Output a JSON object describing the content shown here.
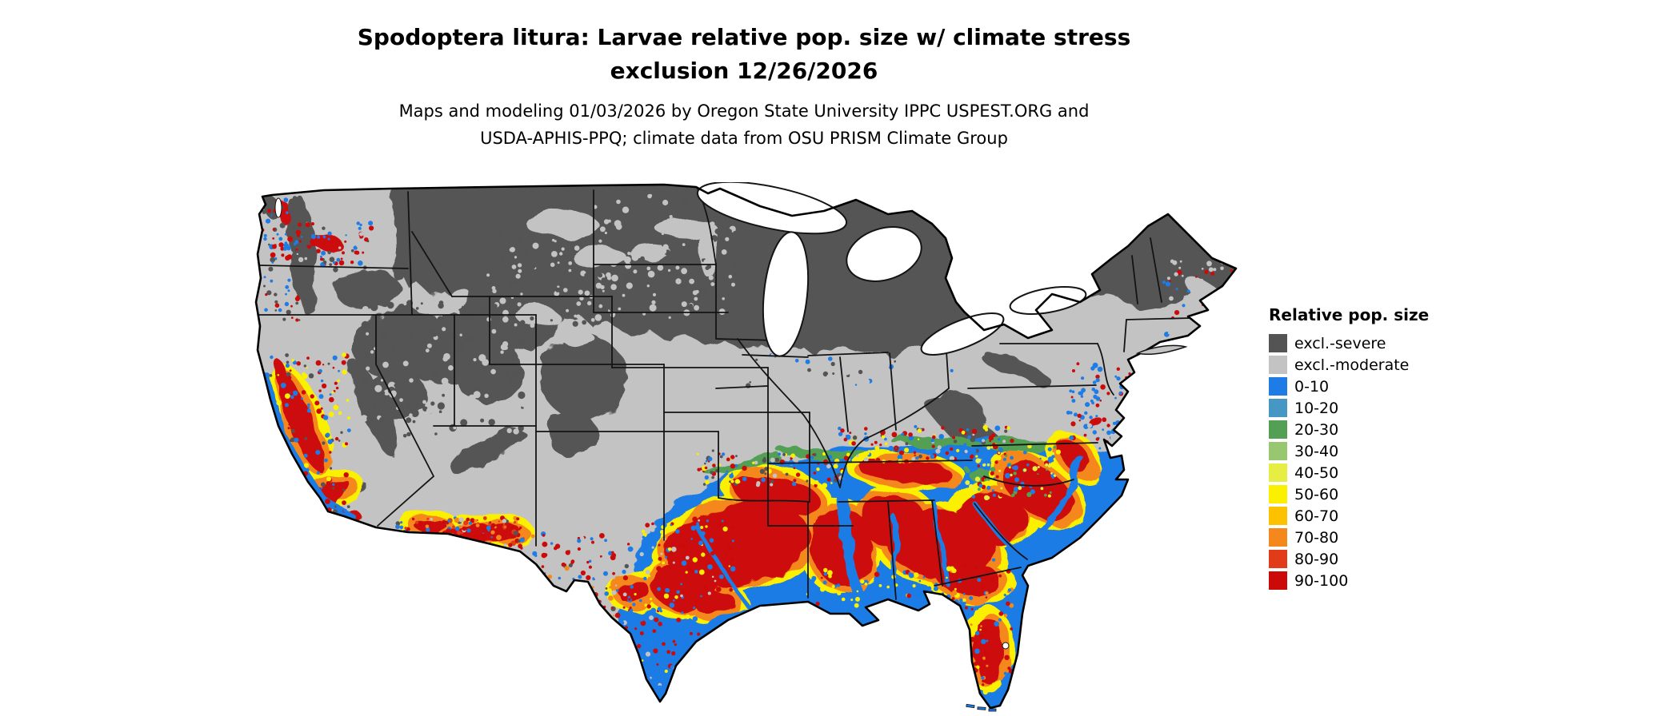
{
  "title": {
    "line1": "Spodoptera litura: Larvae relative pop. size w/ climate stress",
    "line2": "exclusion 12/26/2026"
  },
  "subtitle": {
    "line1": "Maps and modeling 01/03/2026 by Oregon State University IPPC USPEST.ORG and",
    "line2": "USDA-APHIS-PPQ; climate data from OSU PRISM Climate Group"
  },
  "legend": {
    "title": "Relative pop. size",
    "items": [
      {
        "label": "excl.-severe",
        "color": "#545454"
      },
      {
        "label": "excl.-moderate",
        "color": "#c3c3c3"
      },
      {
        "label": "0-10",
        "color": "#1e7ce6"
      },
      {
        "label": "10-20",
        "color": "#4697c4"
      },
      {
        "label": "20-30",
        "color": "#53a055"
      },
      {
        "label": "30-40",
        "color": "#97c76f"
      },
      {
        "label": "40-50",
        "color": "#e6ed43"
      },
      {
        "label": "50-60",
        "color": "#fbf000"
      },
      {
        "label": "60-70",
        "color": "#fcc200"
      },
      {
        "label": "70-80",
        "color": "#f5881d"
      },
      {
        "label": "80-90",
        "color": "#e23b19"
      },
      {
        "label": "90-100",
        "color": "#cd0a0a"
      }
    ]
  },
  "chart_data": {
    "type": "heatmap",
    "map_region": "Contiguous United States",
    "title": "Spodoptera litura: Larvae relative pop. size w/ climate stress exclusion 12/26/2026",
    "legend_title": "Relative pop. size",
    "classes": [
      "excl.-severe",
      "excl.-moderate",
      "0-10",
      "10-20",
      "20-30",
      "30-40",
      "40-50",
      "50-60",
      "60-70",
      "70-80",
      "80-90",
      "90-100"
    ],
    "class_colors": {
      "excl.-severe": "#545454",
      "excl.-moderate": "#c3c3c3",
      "0-10": "#1e7ce6",
      "10-20": "#4697c4",
      "20-30": "#53a055",
      "30-40": "#97c76f",
      "40-50": "#e6ed43",
      "50-60": "#fbf000",
      "60-70": "#fcc200",
      "70-80": "#f5881d",
      "80-90": "#e23b19",
      "90-100": "#cd0a0a"
    },
    "distribution_summary": {
      "excl_severe": "Northern tier dark gray: Cascades and Olympics, northern Rockies, Montana, Dakotas, Minnesota, Wisconsin, Michigan, Adirondacks, northern New England, high Great Basin and Colorado Rockies, Sierra Nevada, Appalachian highlands",
      "excl_moderate": "Light gray central band: eastern Washington/Oregon lowlands, Great Basin valleys, central and southern Plains, Midwest, Ohio Valley, mid-Atlantic interior, New England coast",
      "populated": "Colored southern tier: California Central Valley and coast, southern Arizona, southern New Mexico/west Texas border, Texas, Gulf Coast, Southeast, Florida, Atlantic coastal plain north to Virginia; highest values 80-100 (red) across east Texas, Louisiana, Mississippi, Alabama, Georgia and coastal Carolinas, interleaved with 0-10 (blue) river corridors and coasts, with yellow-orange 40-80 transition rims"
    }
  }
}
